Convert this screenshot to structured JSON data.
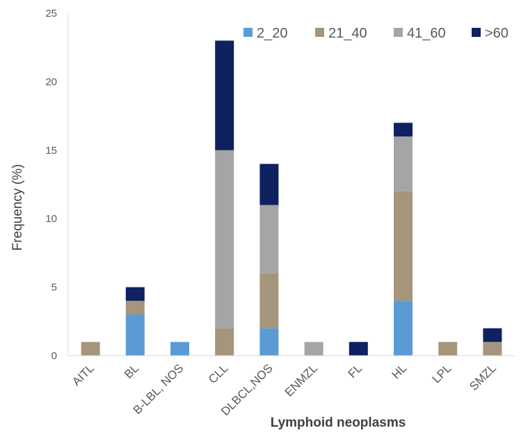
{
  "chart_data": {
    "type": "bar",
    "stacked": true,
    "title": "",
    "xlabel": "Lymphoid neoplasms",
    "ylabel": "Frequency (%)",
    "ylim": [
      0,
      25
    ],
    "yticks": [
      0,
      5,
      10,
      15,
      20,
      25
    ],
    "grid": false,
    "legend_position": "top-right",
    "categories": [
      "AITL",
      "BL",
      "B-LBL, NOS",
      "CLL",
      "DLBCL,NOS",
      "ENMZL",
      "FL",
      "HL",
      "LPL",
      "SMZL"
    ],
    "series": [
      {
        "name": "2_20",
        "color": "#5b9bd5",
        "values": [
          0,
          3,
          1,
          0,
          2,
          0,
          0,
          4,
          0,
          0
        ]
      },
      {
        "name": "21_40",
        "color": "#a5957c",
        "values": [
          1,
          1,
          0,
          2,
          4,
          0,
          0,
          8,
          1,
          1
        ]
      },
      {
        "name": "41_60",
        "color": "#a5a5a5",
        "values": [
          0,
          0,
          0,
          13,
          5,
          1,
          0,
          4,
          0,
          0
        ]
      },
      {
        "name": ">60",
        "color": "#0e2160",
        "values": [
          0,
          1,
          0,
          8,
          3,
          0,
          1,
          1,
          0,
          1
        ]
      }
    ]
  }
}
